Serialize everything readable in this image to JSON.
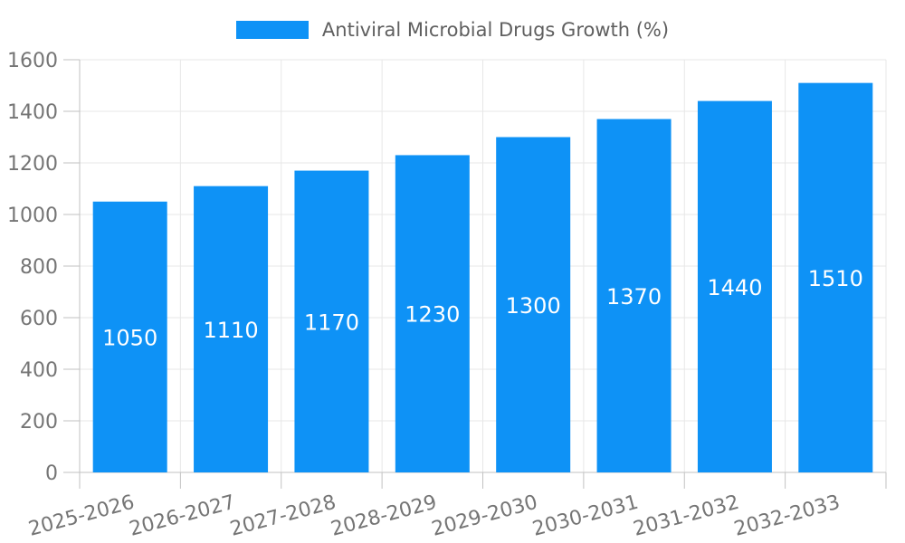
{
  "legend": {
    "label": "Antiviral Microbial Drugs Growth (%)"
  },
  "chart_data": {
    "type": "bar",
    "title": "Antiviral Microbial Drugs Growth (%)",
    "categories": [
      "2025-2026",
      "2026-2027",
      "2027-2028",
      "2028-2029",
      "2029-2030",
      "2030-2031",
      "2031-2032",
      "2032-2033"
    ],
    "values": [
      1050,
      1110,
      1170,
      1230,
      1300,
      1370,
      1440,
      1510
    ],
    "xlabel": "",
    "ylabel": "",
    "ylim": [
      0,
      1600
    ],
    "ytick_interval": 200,
    "yticks": [
      0,
      200,
      400,
      600,
      800,
      1000,
      1200,
      1400,
      1600
    ],
    "grid": true,
    "gridlines": "horizontal at each y tick, vertical at category boundaries",
    "legend_position": "top-center",
    "x_label_rotation_deg": -15,
    "bar_value_labels_shown": true,
    "colors": {
      "bar": "#0E92F6",
      "grid": "#E7E7E7",
      "axis": "#C2C2C2",
      "tick_label": "#757575",
      "value_label": "#FFFFFF",
      "legend_text": "#5F5F5F",
      "background": "#FFFFFF"
    }
  }
}
